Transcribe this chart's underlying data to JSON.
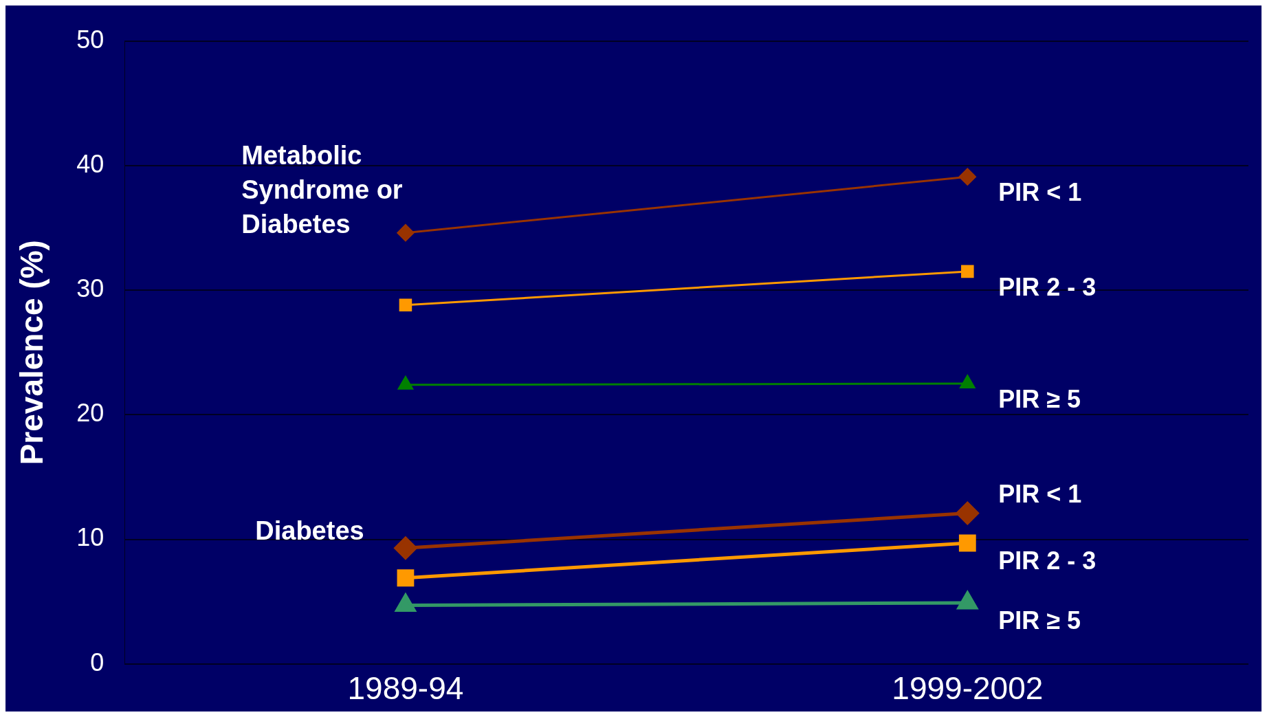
{
  "chart_data": {
    "type": "line",
    "ylabel": "Prevalence (%)",
    "categories": [
      "1989-94",
      "1999-2002"
    ],
    "ylim": [
      0,
      50
    ],
    "yticks": [
      0,
      10,
      20,
      30,
      40,
      50
    ],
    "grid": "y",
    "legend": false,
    "annotations": [
      "Metabolic Syndrome or Diabetes",
      "Diabetes"
    ],
    "series": [
      {
        "name": "PIR < 1",
        "color": "#993300",
        "values": [
          34.6,
          39.1
        ],
        "marker": "diamond"
      },
      {
        "name": "PIR 2 - 3",
        "color": "#ff9900",
        "values": [
          28.8,
          31.5
        ],
        "marker": "square"
      },
      {
        "name": "PIR ≥ 5",
        "color": "#008000",
        "values": [
          22.4,
          22.5
        ],
        "marker": "triangle"
      },
      {
        "name": "PIR < 1",
        "color": "#993300",
        "values": [
          9.3,
          12.1
        ],
        "marker": "diamond"
      },
      {
        "name": "PIR 2 - 3",
        "color": "#ff9900",
        "values": [
          6.9,
          9.7
        ],
        "marker": "square"
      },
      {
        "name": "PIR ≥ 5",
        "color": "#339966",
        "values": [
          4.7,
          4.9
        ],
        "marker": "triangle"
      }
    ]
  }
}
